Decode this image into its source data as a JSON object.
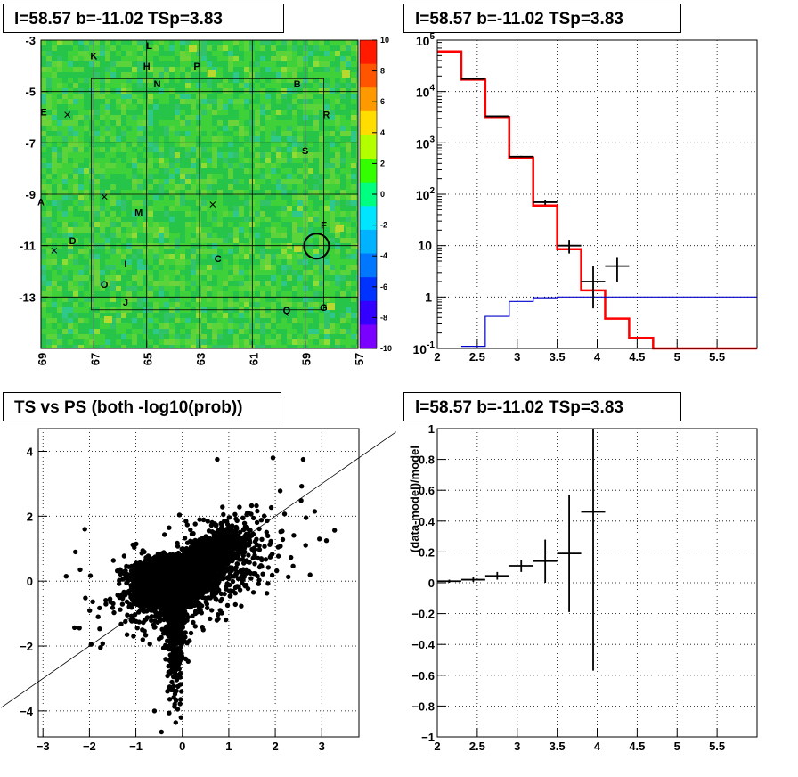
{
  "panels": {
    "map_title": "l=58.57 b=-11.02 TSp=3.83",
    "spectrum_title": "l=58.57 b=-11.02 TSp=3.83",
    "scatter_title": "TS vs PS (both -log10(prob))",
    "residual_title": "l=58.57 b=-11.02 TSp=3.83"
  },
  "colors": {
    "data": "#000000",
    "model": "#ff0000",
    "background_model": "#0000cc"
  },
  "chart_data": [
    {
      "type": "heatmap",
      "x_ticks": [
        "69",
        "67",
        "65",
        "63",
        "61",
        "59",
        "57"
      ],
      "xlim": [
        69,
        57
      ],
      "y_ticks": [
        "-3",
        "-5",
        "-7",
        "-9",
        "-11",
        "-13"
      ],
      "ylim": [
        -15,
        -3
      ],
      "colorbar_ticks": [
        "10",
        "8",
        "6",
        "4",
        "2",
        "0",
        "-2",
        "-4",
        "-6",
        "-8",
        "-10"
      ],
      "colorbar_range": [
        -10,
        10
      ],
      "labels": [
        {
          "text": "K",
          "l": 67.0,
          "b": -3.6
        },
        {
          "text": "L",
          "l": 64.9,
          "b": -3.2
        },
        {
          "text": "H",
          "l": 65.0,
          "b": -4.0
        },
        {
          "text": "P",
          "l": 63.1,
          "b": -4.0
        },
        {
          "text": "N",
          "l": 64.6,
          "b": -4.7
        },
        {
          "text": "B",
          "l": 59.3,
          "b": -4.7
        },
        {
          "text": "E",
          "l": 68.9,
          "b": -5.8
        },
        {
          "text": "R",
          "l": 58.2,
          "b": -5.9
        },
        {
          "text": "S",
          "l": 59.0,
          "b": -7.3
        },
        {
          "text": "A",
          "l": 69.0,
          "b": -9.3
        },
        {
          "text": "M",
          "l": 65.3,
          "b": -9.7
        },
        {
          "text": "F",
          "l": 58.3,
          "b": -10.2
        },
        {
          "text": "D",
          "l": 67.8,
          "b": -10.8
        },
        {
          "text": "C",
          "l": 62.3,
          "b": -11.5
        },
        {
          "text": "I",
          "l": 65.8,
          "b": -11.7
        },
        {
          "text": "O",
          "l": 66.6,
          "b": -12.5
        },
        {
          "text": "J",
          "l": 65.8,
          "b": -13.2
        },
        {
          "text": "Q",
          "l": 59.7,
          "b": -13.5
        },
        {
          "text": "G",
          "l": 58.3,
          "b": -13.4
        }
      ],
      "markers": [
        {
          "l": 68.0,
          "b": -5.9
        },
        {
          "l": 66.6,
          "b": -9.1
        },
        {
          "l": 62.5,
          "b": -9.4
        },
        {
          "l": 68.5,
          "b": -11.2
        }
      ],
      "source_circle": {
        "l": 58.57,
        "b": -11.02
      }
    },
    {
      "type": "line",
      "y_scale": "log",
      "xlim": [
        2,
        6
      ],
      "ylim": [
        0.1,
        100000
      ],
      "x_ticks": [
        "2",
        "2.5",
        "3",
        "3.5",
        "4",
        "4.5",
        "5",
        "5.5"
      ],
      "y_ticks": [
        "10^-1",
        "1",
        "10",
        "10^2",
        "10^3",
        "10^4",
        "10^5"
      ],
      "series": [
        {
          "kind": "model",
          "step_x": [
            2.0,
            2.3,
            2.6,
            2.9,
            3.2,
            3.5,
            3.8,
            4.1,
            4.4,
            4.7,
            6.0
          ],
          "values": [
            60000,
            17000,
            3200,
            520,
            60,
            8.5,
            1.35,
            0.38,
            0.16,
            0.1
          ]
        },
        {
          "kind": "background_model",
          "step_x": [
            2.3,
            2.6,
            2.9,
            3.2,
            3.5,
            6.0
          ],
          "values": [
            0.11,
            0.42,
            0.82,
            0.97,
            1.0
          ]
        },
        {
          "kind": "data",
          "points": [
            {
              "x": 2.45,
              "xerr": 0.15,
              "y": 17500,
              "yl": 17300,
              "yh": 17700
            },
            {
              "x": 2.75,
              "xerr": 0.15,
              "y": 3300,
              "yl": 3240,
              "yh": 3360
            },
            {
              "x": 3.05,
              "xerr": 0.15,
              "y": 540,
              "yl": 520,
              "yh": 560
            },
            {
              "x": 3.35,
              "xerr": 0.15,
              "y": 70,
              "yl": 62,
              "yh": 78
            },
            {
              "x": 3.65,
              "xerr": 0.15,
              "y": 10,
              "yl": 7,
              "yh": 13
            },
            {
              "x": 3.95,
              "xerr": 0.15,
              "y": 2,
              "yl": 0.6,
              "yh": 4
            },
            {
              "x": 4.25,
              "xerr": 0.15,
              "y": 4,
              "yl": 2,
              "yh": 6
            }
          ]
        }
      ]
    },
    {
      "type": "scatter",
      "xlim": [
        -3.1,
        3.8
      ],
      "ylim": [
        -4.8,
        4.7
      ],
      "x_ticks": [
        "-3",
        "-2",
        "-1",
        "0",
        "1",
        "2",
        "3"
      ],
      "y_ticks": [
        "-4",
        "-2",
        "0",
        "2",
        "4"
      ],
      "reference_line": {
        "slope": 1,
        "intercept": 0
      },
      "cluster": {
        "n_points": 7000
      }
    },
    {
      "type": "scatter",
      "xlim": [
        2,
        6
      ],
      "ylim": [
        -1,
        1
      ],
      "x_ticks": [
        "2",
        "2.5",
        "3",
        "3.5",
        "4",
        "4.5",
        "5",
        "5.5"
      ],
      "y_ticks": [
        "-1",
        "-0.8",
        "-0.6",
        "-0.4",
        "-0.2",
        "0",
        "0.2",
        "0.4",
        "0.6",
        "0.8",
        "1"
      ],
      "ylabel": "(data-model)/model",
      "points": [
        {
          "x": 2.15,
          "xerr": 0.15,
          "y": 0.01,
          "yl": 0.0,
          "yh": 0.02
        },
        {
          "x": 2.45,
          "xerr": 0.15,
          "y": 0.02,
          "yl": 0.005,
          "yh": 0.035
        },
        {
          "x": 2.75,
          "xerr": 0.15,
          "y": 0.045,
          "yl": 0.02,
          "yh": 0.07
        },
        {
          "x": 3.05,
          "xerr": 0.15,
          "y": 0.11,
          "yl": 0.07,
          "yh": 0.15
        },
        {
          "x": 3.35,
          "xerr": 0.15,
          "y": 0.14,
          "yl": 0.0,
          "yh": 0.28
        },
        {
          "x": 3.65,
          "xerr": 0.15,
          "y": 0.19,
          "yl": -0.19,
          "yh": 0.57
        },
        {
          "x": 3.95,
          "xerr": 0.15,
          "y": 0.46,
          "yl": -0.57,
          "yh": 1.0
        }
      ]
    }
  ]
}
